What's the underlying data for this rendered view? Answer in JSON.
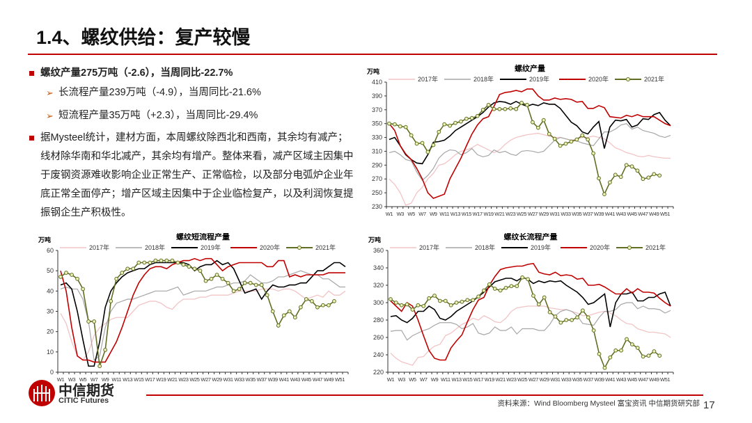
{
  "title": "1.4、螺纹供给：复产较慢",
  "bullets": {
    "b1": "螺纹产量275万吨（-2.6），当周同比-22.7%",
    "s1": "长流程产量239万吨（-4.9），当周同比-21.6%",
    "s2": "短流程产量35万吨（+2.3），当周同比-29.4%",
    "b2": "据Mysteel统计，建材方面，本周螺纹除西北和西南，其余均有减产；线材除华南和华北减产，其余均有增产。整体来看，减产区域主因集中于废钢资源难收影响企业正常生产、正常临检，以及部分电弧炉企业年底正常全面停产；增产区域主因集中于企业临检复产，以及利润恢复提振钢企生产积极性。"
  },
  "footer": {
    "logo_cn": "中信期货",
    "logo_en": "CITIC Futures",
    "source": "资料来源：Wind Bloomberg Mysteel  富宝资讯 中信期货研究部",
    "page": "17"
  },
  "colors": {
    "2017年": "#f2c4c6",
    "2018年": "#a6a6a6",
    "2019年": "#000000",
    "2020年": "#c00000",
    "2021年": "#5f6e22",
    "accent": "#c00000"
  },
  "chart_data": [
    {
      "type": "line",
      "title": "螺纹产量",
      "ylabel": "万吨",
      "ylim": [
        230,
        410
      ],
      "yticks": [
        230,
        250,
        270,
        290,
        310,
        330,
        350,
        370,
        390,
        410
      ],
      "xticks": [
        "W1",
        "W3",
        "W5",
        "W7",
        "W9",
        "W11",
        "W13",
        "W15",
        "W17",
        "W19",
        "W21",
        "W23",
        "W25",
        "W27",
        "W29",
        "W31",
        "W33",
        "W35",
        "W37",
        "W39",
        "W41",
        "W43",
        "W45",
        "W47",
        "W49",
        "W51"
      ],
      "series": [
        {
          "name": "2017年",
          "values": [
            270,
            262,
            250,
            232,
            235,
            250,
            258,
            270,
            278,
            290,
            292,
            298,
            305,
            310,
            312,
            315,
            320,
            316,
            312,
            308,
            312,
            320,
            326,
            330,
            332,
            334,
            335,
            336,
            334,
            332,
            330,
            330,
            328,
            326,
            328,
            330,
            330,
            332,
            330,
            328,
            322,
            315,
            312,
            308,
            306,
            303,
            302,
            304,
            302,
            301,
            300,
            300
          ]
        },
        {
          "name": "2018年",
          "values": [
            308,
            310,
            305,
            298,
            296,
            280,
            268,
            275,
            285,
            300,
            308,
            312,
            311,
            305,
            308,
            314,
            305,
            302,
            304,
            312,
            308,
            310,
            306,
            304,
            310,
            311,
            310,
            308,
            310,
            318,
            326,
            330,
            328,
            326,
            325,
            322,
            320,
            318,
            328,
            338,
            338,
            342,
            348,
            350,
            342,
            345,
            340,
            338,
            336,
            332,
            330,
            333
          ]
        },
        {
          "name": "2019年",
          "values": [
            327,
            330,
            318,
            305,
            298,
            293,
            292,
            305,
            323,
            324,
            326,
            332,
            340,
            345,
            350,
            355,
            360,
            366,
            374,
            380,
            382,
            381,
            378,
            382,
            378,
            375,
            378,
            376,
            380,
            378,
            378,
            372,
            362,
            352,
            347,
            338,
            335,
            345,
            353,
            314,
            345,
            355,
            354,
            356,
            345,
            348,
            357,
            356,
            363,
            366,
            355,
            347
          ]
        },
        {
          "name": "2020年",
          "values": [
            350,
            340,
            318,
            306,
            298,
            285,
            270,
            250,
            242,
            245,
            248,
            270,
            285,
            300,
            318,
            335,
            348,
            357,
            360,
            375,
            392,
            395,
            396,
            398,
            396,
            400,
            400,
            390,
            384,
            384,
            387,
            385,
            386,
            385,
            381,
            382,
            372,
            372,
            376,
            373,
            360,
            359,
            358,
            362,
            360,
            363,
            360,
            360,
            360,
            355,
            350,
            347
          ]
        },
        {
          "name": "2021年",
          "values": [
            350,
            349,
            346,
            345,
            333,
            321,
            322,
            309,
            319,
            338,
            349,
            347,
            351,
            353,
            357,
            358,
            361,
            370,
            377,
            371,
            371,
            371,
            372,
            371,
            380,
            377,
            352,
            344,
            355,
            335,
            328,
            318,
            321,
            324,
            327,
            333,
            327,
            307,
            271,
            248,
            265,
            276,
            273,
            290,
            288,
            282,
            270,
            272,
            277,
            275
          ]
        }
      ]
    },
    {
      "type": "line",
      "title": "螺纹短流程产量",
      "ylabel": "万吨",
      "ylim": [
        0,
        60
      ],
      "yticks": [
        0,
        10,
        20,
        30,
        40,
        50,
        60
      ],
      "xticks": [
        "W1",
        "W3",
        "W5",
        "W7",
        "W9",
        "W11",
        "W13",
        "W15",
        "W17",
        "W19",
        "W21",
        "W23",
        "W25",
        "W27",
        "W29",
        "W31",
        "W33",
        "W35",
        "W37",
        "W39",
        "W41",
        "W43",
        "W45",
        "W47",
        "W49",
        "W51"
      ],
      "series": [
        {
          "name": "2017年",
          "values": [
            29,
            24,
            15,
            8,
            6,
            10,
            18,
            22,
            24,
            26,
            27,
            27,
            27,
            30,
            33,
            34,
            35,
            35,
            34,
            32,
            31,
            34,
            36,
            36,
            36,
            37,
            37,
            38,
            38,
            38,
            38,
            39,
            40,
            40,
            40,
            40,
            41,
            41,
            41,
            40,
            41,
            41,
            40,
            38,
            36,
            37,
            38,
            37,
            40,
            38,
            38,
            40
          ]
        },
        {
          "name": "2018年",
          "values": [
            41,
            42,
            41,
            41,
            36,
            25,
            6,
            8,
            22,
            30,
            34,
            35,
            36,
            36,
            37,
            38,
            39,
            40,
            40,
            40,
            41,
            42,
            38,
            39,
            40,
            40,
            40,
            41,
            42,
            42,
            43,
            44,
            44,
            45,
            48,
            46,
            44,
            44,
            45,
            47,
            47,
            48,
            49,
            50,
            49,
            48,
            48,
            46,
            46,
            44,
            42,
            42
          ]
        },
        {
          "name": "2019年",
          "values": [
            43,
            44,
            41,
            30,
            16,
            3,
            3,
            15,
            32,
            40,
            44,
            47,
            49,
            50,
            51,
            51,
            53,
            54,
            54,
            54,
            54,
            54,
            54,
            53,
            50,
            52,
            53,
            53,
            55,
            53,
            54,
            51,
            45,
            39,
            40,
            41,
            36,
            40,
            43,
            42,
            42,
            43,
            43,
            44,
            44,
            47,
            50,
            50,
            52,
            54,
            54,
            52
          ]
        },
        {
          "name": "2020年",
          "values": [
            50,
            40,
            22,
            8,
            6,
            6,
            5,
            5,
            5,
            10,
            15,
            22,
            30,
            38,
            44,
            48,
            51,
            52,
            52,
            51,
            53,
            54,
            55,
            55,
            56,
            55,
            56,
            56,
            53,
            50,
            52,
            53,
            54,
            54,
            54,
            54,
            54,
            52,
            52,
            55,
            55,
            47,
            48,
            47,
            48,
            48,
            48,
            48,
            49,
            49,
            49,
            49
          ]
        },
        {
          "name": "2021年",
          "values": [
            47,
            49,
            48,
            46,
            41,
            25,
            25,
            3,
            11,
            35,
            46,
            49,
            51,
            51,
            54,
            54,
            54,
            55,
            55,
            55,
            55,
            54,
            53,
            52,
            51,
            50,
            45,
            46,
            48,
            46,
            44,
            40,
            41,
            44,
            44,
            43,
            43,
            38,
            30,
            23,
            28,
            30,
            27,
            32,
            36,
            35,
            32,
            33,
            33,
            35
          ]
        }
      ]
    },
    {
      "type": "line",
      "title": "螺纹长流程产量",
      "ylabel": "万吨",
      "ylim": [
        220,
        360
      ],
      "yticks": [
        220,
        240,
        260,
        280,
        300,
        320,
        340,
        360
      ],
      "xticks": [
        "W1",
        "W3",
        "W5",
        "W7",
        "W9",
        "W11",
        "W13",
        "W15",
        "W17",
        "W19",
        "W21",
        "W23",
        "W25",
        "W27",
        "W29",
        "W31",
        "W33",
        "W35",
        "W37",
        "W39",
        "W41",
        "W43",
        "W45",
        "W47",
        "W49",
        "W51"
      ],
      "series": [
        {
          "name": "2017年",
          "values": [
            242,
            236,
            232,
            230,
            228,
            237,
            238,
            245,
            250,
            252,
            262,
            265,
            270,
            275,
            278,
            282,
            280,
            285,
            282,
            278,
            277,
            282,
            290,
            294,
            295,
            296,
            296,
            296,
            296,
            294,
            293,
            292,
            292,
            290,
            288,
            285,
            285,
            287,
            289,
            290,
            288,
            285,
            280,
            276,
            275,
            270,
            268,
            266,
            266,
            265,
            264,
            260
          ]
        },
        {
          "name": "2018年",
          "values": [
            267,
            268,
            268,
            257,
            262,
            265,
            268,
            270,
            274,
            277,
            277,
            277,
            275,
            270,
            272,
            276,
            265,
            263,
            265,
            272,
            268,
            268,
            272,
            264,
            270,
            270,
            270,
            268,
            268,
            275,
            285,
            290,
            292,
            290,
            285,
            276,
            275,
            274,
            283,
            290,
            290,
            292,
            298,
            300,
            300,
            293,
            296,
            293,
            293,
            292,
            288,
            291
          ]
        },
        {
          "name": "2019年",
          "values": [
            284,
            285,
            280,
            277,
            282,
            290,
            290,
            296,
            292,
            282,
            280,
            284,
            290,
            294,
            298,
            302,
            307,
            312,
            318,
            324,
            326,
            328,
            328,
            325,
            329,
            327,
            322,
            325,
            323,
            325,
            324,
            325,
            320,
            316,
            312,
            306,
            298,
            300,
            305,
            310,
            272,
            300,
            310,
            310,
            312,
            302,
            302,
            306,
            306,
            310,
            312,
            296
          ]
        },
        {
          "name": "2020年",
          "values": [
            302,
            296,
            290,
            300,
            296,
            280,
            262,
            245,
            236,
            234,
            234,
            248,
            256,
            263,
            278,
            292,
            303,
            306,
            320,
            330,
            338,
            340,
            341,
            342,
            342,
            344,
            345,
            335,
            333,
            332,
            335,
            331,
            332,
            331,
            327,
            328,
            320,
            320,
            321,
            318,
            314,
            310,
            310,
            316,
            311,
            316,
            312,
            312,
            311,
            305,
            300,
            296
          ]
        },
        {
          "name": "2021年",
          "values": [
            304,
            300,
            297,
            298,
            292,
            297,
            296,
            305,
            308,
            302,
            302,
            297,
            300,
            301,
            303,
            303,
            307,
            314,
            321,
            316,
            314,
            317,
            319,
            319,
            329,
            327,
            308,
            298,
            306,
            289,
            284,
            277,
            280,
            280,
            283,
            291,
            283,
            268,
            241,
            225,
            237,
            245,
            245,
            258,
            252,
            248,
            238,
            239,
            244,
            239
          ]
        }
      ]
    }
  ]
}
